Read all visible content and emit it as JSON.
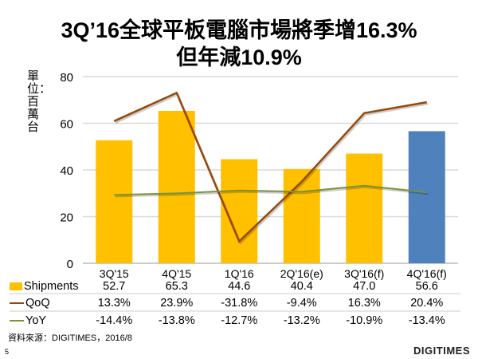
{
  "title_line1": "3Q’16全球平板電腦市場將季增16.3%",
  "title_line2": "但年減10.9%",
  "source": "資料來源：DIGITIMES，2016/8",
  "page_number": "5",
  "logo": "DIGITIMES",
  "colors": {
    "bar": "#ffc000",
    "bar_forecast": "#4f81bd",
    "qoq": "#984807",
    "yoy": "#77933c"
  },
  "chart_data": {
    "type": "bar",
    "ylabel": "單位：百萬台",
    "ylim": [
      0,
      80
    ],
    "yticks": [
      "0",
      "20",
      "40",
      "60",
      "80"
    ],
    "categories": [
      "3Q'15",
      "4Q'15",
      "1Q'16",
      "2Q'16(e)",
      "3Q'16(f)",
      "4Q'16(f)"
    ],
    "series": [
      {
        "name": "Shipments",
        "type": "bar",
        "values": [
          52.7,
          65.3,
          44.6,
          40.4,
          47.0,
          56.6
        ],
        "labels": [
          "52.7",
          "65.3",
          "44.6",
          "40.4",
          "47.0",
          "56.6"
        ]
      },
      {
        "name": "QoQ",
        "type": "line",
        "axis": "secondary",
        "values": [
          13.3,
          23.9,
          -31.8,
          -9.4,
          16.3,
          20.4
        ],
        "labels": [
          "13.3%",
          "23.9%",
          "-31.8%",
          "-9.4%",
          "16.3%",
          "20.4%"
        ]
      },
      {
        "name": "YoY",
        "type": "line",
        "axis": "secondary",
        "values": [
          -14.4,
          -13.8,
          -12.7,
          -13.2,
          -10.9,
          -13.4
        ],
        "labels": [
          "-14.4%",
          "-13.8%",
          "-12.7%",
          "-13.2%",
          "-10.9%",
          "-13.4%"
        ]
      }
    ],
    "secondary_ylim": [
      -40,
      30
    ],
    "grid": true,
    "legend": "data-table"
  }
}
